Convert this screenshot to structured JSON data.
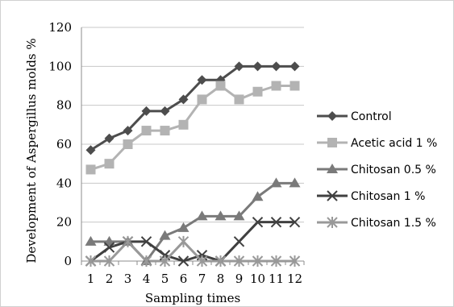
{
  "chart_data": {
    "type": "line",
    "title": "",
    "xlabel": "Sampling times",
    "ylabel": "Development of Aspergillus molds %",
    "x": [
      "1",
      "2",
      "3",
      "4",
      "5",
      "6",
      "7",
      "8",
      "9",
      "10",
      "11",
      "12"
    ],
    "ylim": [
      0,
      120
    ],
    "yticks": [
      "0",
      "20",
      "40",
      "60",
      "80",
      "100",
      "120"
    ],
    "grid": true,
    "legend_position": "right",
    "series": [
      {
        "name": "Control",
        "marker": "diamond",
        "color": "#4d4d4d",
        "values": [
          57,
          63,
          67,
          77,
          77,
          83,
          93,
          93,
          100,
          100,
          100,
          100
        ]
      },
      {
        "name": "Acetic acid 1 %",
        "marker": "square",
        "color": "#b3b3b3",
        "values": [
          47,
          50,
          60,
          67,
          67,
          70,
          83,
          90,
          83,
          87,
          90,
          90
        ]
      },
      {
        "name": "Chitosan 0.5 %",
        "marker": "triangle",
        "color": "#7a7a7a",
        "values": [
          10,
          10,
          10,
          0,
          13,
          17,
          23,
          23,
          23,
          33,
          40,
          40
        ]
      },
      {
        "name": "Chitosan 1 %",
        "marker": "x",
        "color": "#404040",
        "values": [
          0,
          7,
          10,
          10,
          3,
          0,
          3,
          0,
          10,
          20,
          20,
          20
        ]
      },
      {
        "name": "Chitosan  1.5 %",
        "marker": "star",
        "color": "#999999",
        "values": [
          0,
          0,
          10,
          0,
          0,
          10,
          0,
          0,
          0,
          0,
          0,
          0
        ]
      }
    ]
  }
}
